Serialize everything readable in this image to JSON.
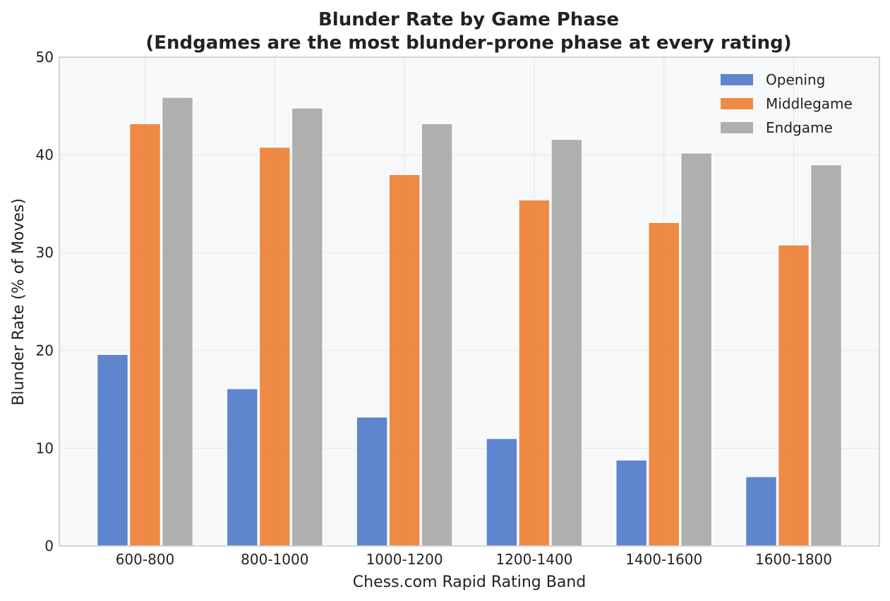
{
  "chart_data": {
    "type": "bar",
    "title": "Blunder Rate by Game Phase",
    "subtitle": "(Endgames are the most blunder-prone phase at every rating)",
    "xlabel": "Chess.com Rapid Rating Band",
    "ylabel": "Blunder Rate (% of Moves)",
    "categories": [
      "600-800",
      "800-1000",
      "1000-1200",
      "1200-1400",
      "1400-1600",
      "1600-1800"
    ],
    "series": [
      {
        "name": "Opening",
        "color": "#4c78c8",
        "values": [
          19.6,
          16.1,
          13.2,
          11.0,
          8.8,
          7.1
        ]
      },
      {
        "name": "Middlegame",
        "color": "#ed7d31",
        "values": [
          43.2,
          40.8,
          38.0,
          35.4,
          33.1,
          30.8
        ]
      },
      {
        "name": "Endgame",
        "color": "#a6a6a6",
        "values": [
          45.9,
          44.8,
          43.2,
          41.6,
          40.2,
          39.0
        ]
      }
    ],
    "ylim": [
      0,
      50
    ],
    "yticks": [
      0,
      10,
      20,
      30,
      40,
      50
    ],
    "grid": true,
    "legend_position": "top-right"
  }
}
